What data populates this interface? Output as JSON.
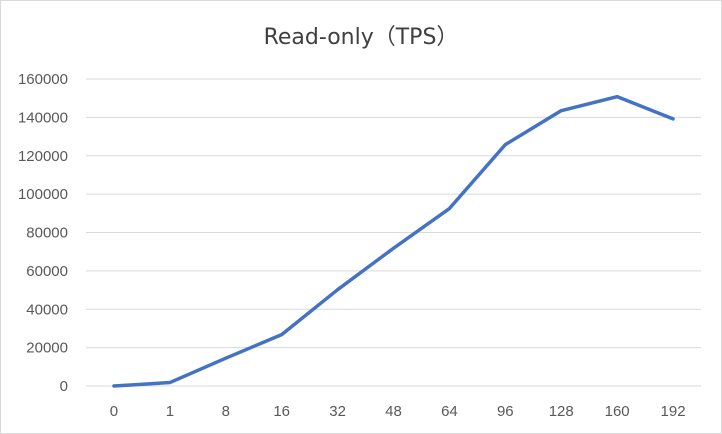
{
  "chart_data": {
    "type": "line",
    "title": "Read-only（TPS）",
    "xlabel": "",
    "ylabel": "",
    "categories": [
      "0",
      "1",
      "8",
      "16",
      "32",
      "48",
      "64",
      "96",
      "128",
      "160",
      "192"
    ],
    "series": [
      {
        "values": [
          0,
          1800,
          14500,
          26800,
          50200,
          71800,
          92500,
          125800,
          143500,
          150800,
          139200
        ]
      }
    ],
    "ylim": [
      0,
      160000
    ],
    "yticks": [
      0,
      20000,
      40000,
      60000,
      80000,
      100000,
      120000,
      140000,
      160000
    ],
    "grid": true,
    "legend": "none",
    "line_color": "#4472C4",
    "grid_color": "#d9d9d9"
  }
}
